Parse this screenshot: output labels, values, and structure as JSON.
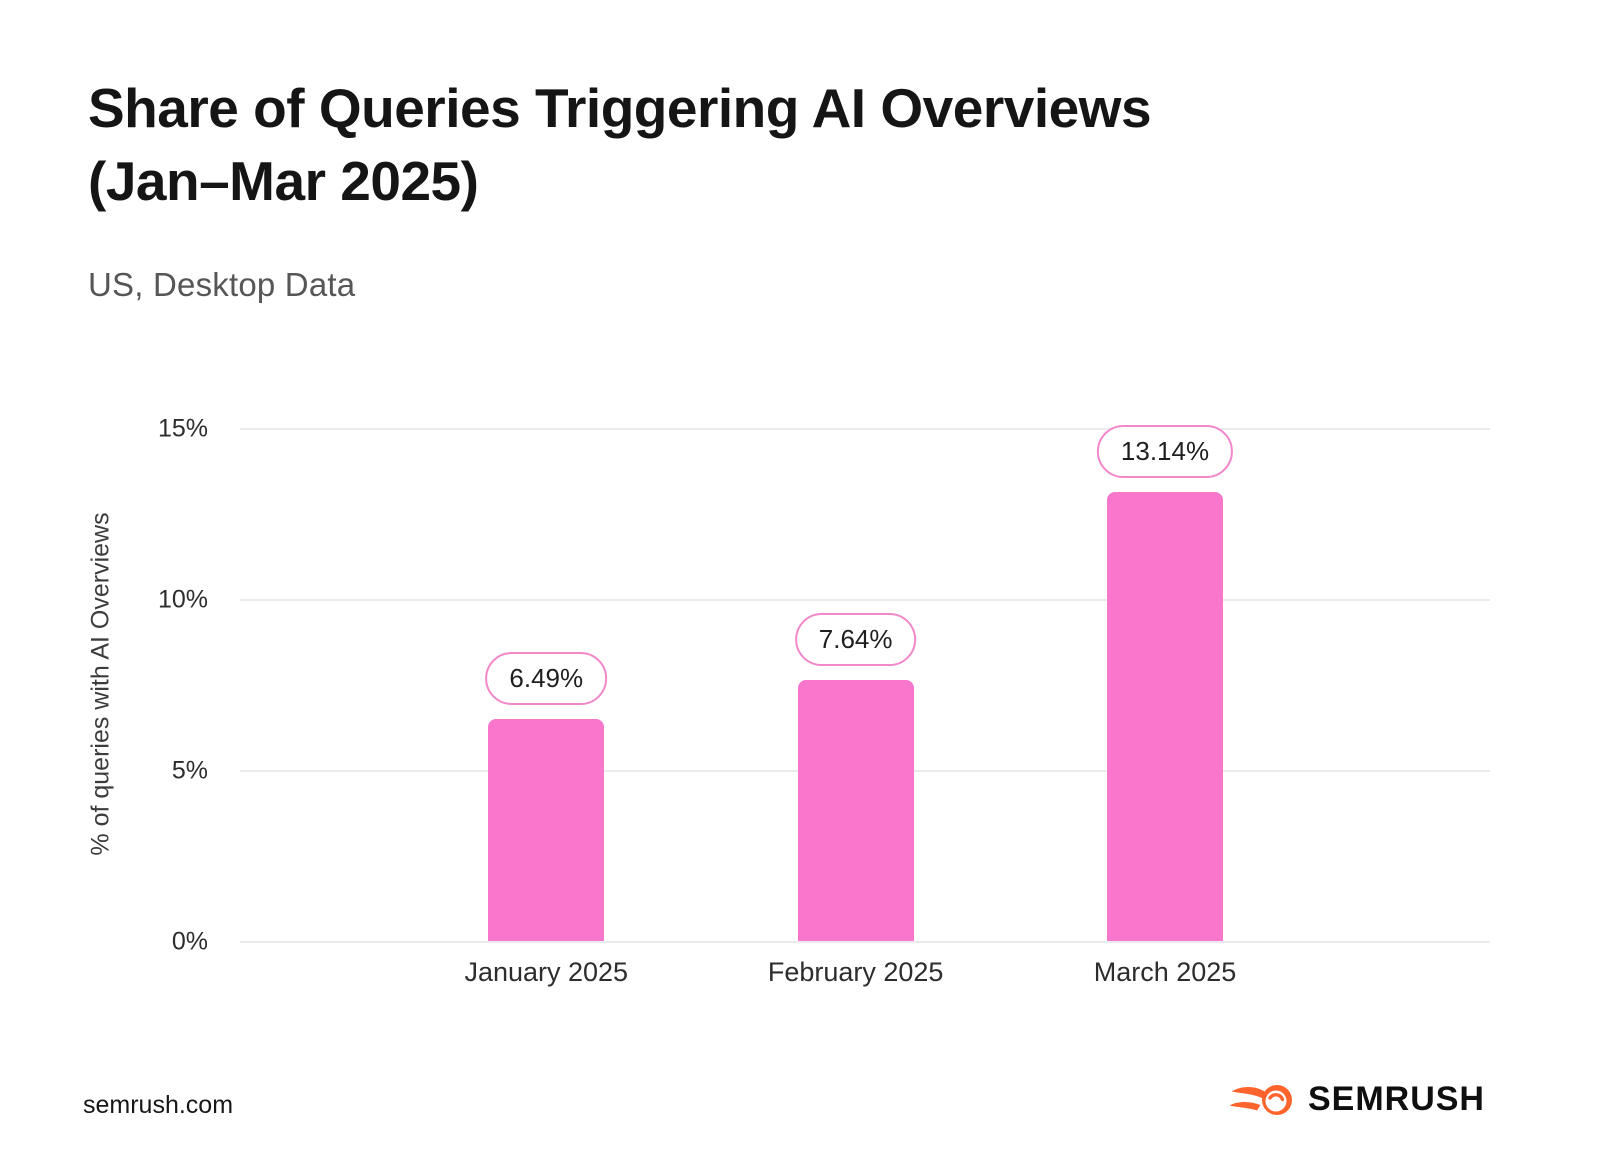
{
  "header": {
    "title_line1": "Share of Queries Triggering AI Overviews",
    "title_line2": "(Jan–Mar 2025)",
    "subtitle": "US, Desktop Data"
  },
  "chart_data": {
    "type": "bar",
    "categories": [
      "January 2025",
      "February 2025",
      "March 2025"
    ],
    "values": [
      6.49,
      7.64,
      13.14
    ],
    "value_labels": [
      "6.49%",
      "7.64%",
      "13.14%"
    ],
    "title": "Share of Queries Triggering AI Overviews (Jan–Mar 2025)",
    "subtitle": "US, Desktop Data",
    "xlabel": "",
    "ylabel": "% of queries with AI Overviews",
    "ylim": [
      0,
      15
    ],
    "yticks": [
      {
        "value": 15,
        "label": "15%"
      },
      {
        "value": 10,
        "label": "10%"
      },
      {
        "value": 5,
        "label": "5%"
      },
      {
        "value": 0,
        "label": "0%"
      }
    ],
    "grid": true,
    "legend": false,
    "bar_color": "#F877CD",
    "label_pill_border_color": "#F287CA",
    "gridline_color": "#E9EBEE"
  },
  "footer": {
    "source": "semrush.com",
    "brand": "SEMRUSH",
    "brand_color": "#FF642D"
  }
}
